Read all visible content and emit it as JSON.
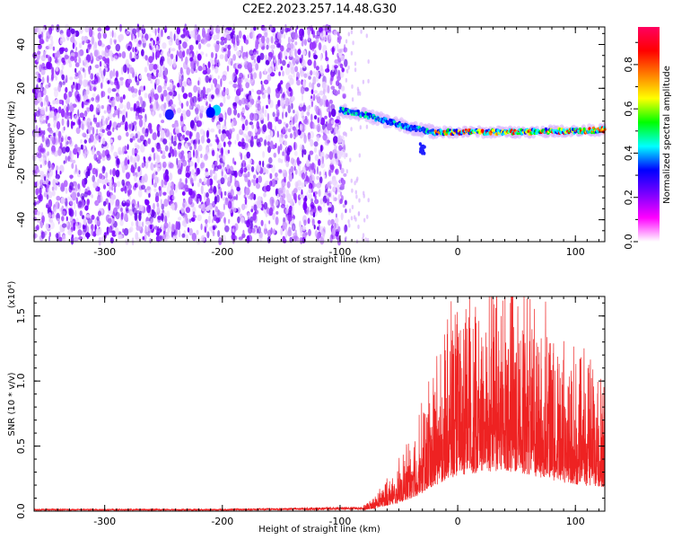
{
  "title": "C2E2.2023.257.14.48.G30",
  "chart_data": [
    {
      "type": "heatmap",
      "xlabel": "Height of straight line (km)",
      "ylabel": "Frequency (Hz)",
      "xlim": [
        -360,
        125
      ],
      "ylim": [
        -50,
        48
      ],
      "xticks": [
        -300,
        -200,
        -100,
        0,
        100
      ],
      "yticks": [
        -40,
        -20,
        0,
        20,
        40
      ],
      "xtick_labels": [
        "-300",
        "-200",
        "-100",
        "0",
        "100"
      ],
      "ytick_labels": [
        "-40",
        "-20",
        "0",
        "20",
        "40"
      ],
      "colorbar": {
        "label": "Normalized spectral amplitude",
        "range": [
          0,
          0.97
        ],
        "ticks": [
          0.0,
          0.2,
          0.4,
          0.6,
          0.8
        ],
        "tick_labels": [
          "0.0",
          "0.2",
          "0.4",
          "0.6",
          "0.8"
        ],
        "colormap": [
          "#ffffff",
          "#ff00ff",
          "#7a00ff",
          "#0000ff",
          "#00ffff",
          "#00ff00",
          "#ffff00",
          "#ff7f00",
          "#ff0000",
          "#ff0060"
        ]
      },
      "features": {
        "noise_region_x": [
          -360,
          -95
        ],
        "track": [
          {
            "x": -100,
            "y": 10
          },
          {
            "x": -80,
            "y": 8
          },
          {
            "x": -60,
            "y": 5
          },
          {
            "x": -40,
            "y": 2
          },
          {
            "x": -20,
            "y": 0
          },
          {
            "x": 0,
            "y": 0
          },
          {
            "x": 50,
            "y": 0
          },
          {
            "x": 125,
            "y": 1
          }
        ]
      }
    },
    {
      "type": "line",
      "xlabel": "Height of straight line (km)",
      "ylabel": "SNR (10 * v/v)",
      "yscale_label": "(x10⁴)",
      "xlim": [
        -360,
        125
      ],
      "ylim": [
        0,
        1.65
      ],
      "xticks": [
        -300,
        -200,
        -100,
        0,
        100
      ],
      "yticks": [
        0.0,
        0.5,
        1.0,
        1.5
      ],
      "xtick_labels": [
        "-300",
        "-200",
        "-100",
        "0",
        "100"
      ],
      "ytick_labels": [
        "0.0",
        "0.5",
        "1.0",
        "1.5"
      ],
      "series_color": "#ee2222",
      "envelope": [
        {
          "x": -360,
          "y": 0.01
        },
        {
          "x": -200,
          "y": 0.01
        },
        {
          "x": -80,
          "y": 0.02
        },
        {
          "x": -70,
          "y": 0.06
        },
        {
          "x": -50,
          "y": 0.18
        },
        {
          "x": -35,
          "y": 0.32
        },
        {
          "x": -20,
          "y": 0.55
        },
        {
          "x": -10,
          "y": 0.68
        },
        {
          "x": 0,
          "y": 0.78
        },
        {
          "x": 20,
          "y": 0.84
        },
        {
          "x": 40,
          "y": 0.88
        },
        {
          "x": 60,
          "y": 0.8
        },
        {
          "x": 80,
          "y": 0.68
        },
        {
          "x": 100,
          "y": 0.58
        },
        {
          "x": 125,
          "y": 0.52
        }
      ]
    }
  ]
}
